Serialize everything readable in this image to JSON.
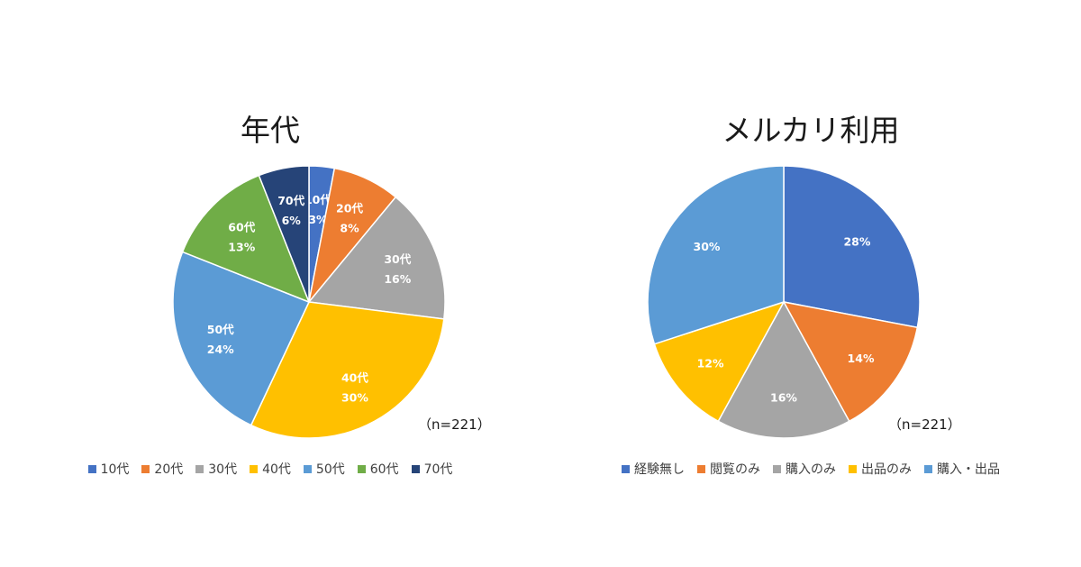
{
  "chart_data": [
    {
      "type": "pie",
      "title": "年代",
      "note": "（n=221）",
      "categories": [
        "10代",
        "20代",
        "30代",
        "40代",
        "50代",
        "60代",
        "70代"
      ],
      "values": [
        3,
        8,
        16,
        30,
        24,
        13,
        6
      ],
      "value_labels": [
        "3%",
        "8%",
        "16%",
        "30%",
        "24%",
        "13%",
        "6%"
      ],
      "colors": [
        "#4472C4",
        "#ED7D31",
        "#A5A5A5",
        "#FFC000",
        "#5B9BD5",
        "#70AD47",
        "#264478"
      ],
      "legend_position": "bottom"
    },
    {
      "type": "pie",
      "title": "メルカリ利用",
      "note": "（n=221）",
      "categories": [
        "経験無し",
        "閲覧のみ",
        "購入のみ",
        "出品のみ",
        "購入・出品"
      ],
      "values": [
        28,
        14,
        16,
        12,
        30
      ],
      "value_labels": [
        "28%",
        "14%",
        "16%",
        "12%",
        "30%"
      ],
      "colors": [
        "#4472C4",
        "#ED7D31",
        "#A5A5A5",
        "#FFC000",
        "#5B9BD5"
      ],
      "legend_position": "bottom"
    }
  ]
}
